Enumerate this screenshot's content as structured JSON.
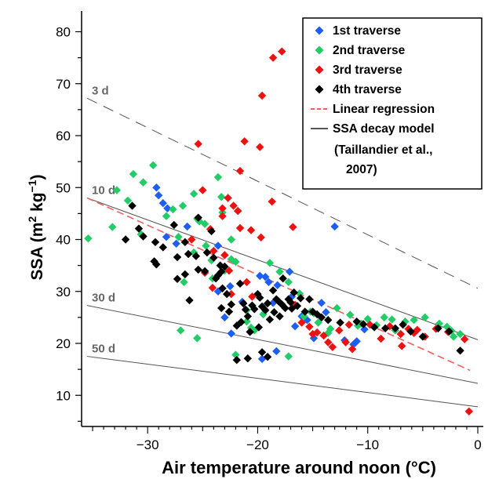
{
  "chart_data": {
    "type": "scatter",
    "xlabel": "Air temperature around noon (°C)",
    "ylabel": {
      "main": "SSA (m",
      "sup1": "2",
      "mid": " kg",
      "sup2": "−1",
      "end": ")"
    },
    "xlim": [
      -36,
      0.5
    ],
    "ylim": [
      4,
      84
    ],
    "x_ticks": [
      -30,
      -20,
      -10,
      0
    ],
    "y_ticks": [
      10,
      20,
      30,
      40,
      50,
      60,
      70,
      80
    ],
    "grid": false,
    "legend_position": "top-right",
    "series": [
      {
        "name": "1st traverse",
        "color": "#1f5ef5",
        "marker": "diamond",
        "points": [
          [
            -29.2,
            50
          ],
          [
            -29.0,
            48.5
          ],
          [
            -28.6,
            47
          ],
          [
            -28.2,
            46
          ],
          [
            -28.3,
            40.5
          ],
          [
            -27.4,
            39.2
          ],
          [
            -26.4,
            42.5
          ],
          [
            -23.6,
            38.8
          ],
          [
            -23.0,
            25
          ],
          [
            -23.6,
            30
          ],
          [
            -22.5,
            31
          ],
          [
            -19.8,
            33
          ],
          [
            -19.3,
            32.8
          ],
          [
            -19.0,
            31.8
          ],
          [
            -18.2,
            31.2
          ],
          [
            -18.6,
            27.8
          ],
          [
            -17.1,
            33.8
          ],
          [
            -16.9,
            29
          ],
          [
            -16.6,
            23.3
          ],
          [
            -14.2,
            27.8
          ],
          [
            -13.8,
            26
          ],
          [
            -13.0,
            42.5
          ],
          [
            -15.5,
            24.5
          ],
          [
            -14.9,
            21
          ],
          [
            -12.1,
            20.6
          ],
          [
            -11.3,
            19.8
          ],
          [
            -11.0,
            20.4
          ],
          [
            -10.3,
            22.7
          ],
          [
            -19.6,
            17
          ],
          [
            -18.3,
            18.5
          ],
          [
            -21.4,
            28
          ],
          [
            -22.4,
            21.9
          ],
          [
            -16.0,
            25.2
          ]
        ]
      },
      {
        "name": "2nd traverse",
        "color": "#22cc66",
        "marker": "diamond",
        "points": [
          [
            -35.4,
            40.2
          ],
          [
            -32.8,
            49.5
          ],
          [
            -31.3,
            52.6
          ],
          [
            -30.4,
            51
          ],
          [
            -29.5,
            54.3
          ],
          [
            -27.7,
            45.8
          ],
          [
            -26.8,
            46.5
          ],
          [
            -27.2,
            40.5
          ],
          [
            -26.7,
            31.8
          ],
          [
            -25.8,
            48.8
          ],
          [
            -25.5,
            44
          ],
          [
            -25.3,
            43.5
          ],
          [
            -24.8,
            43
          ],
          [
            -25.8,
            37.5
          ],
          [
            -24.2,
            36
          ],
          [
            -24.1,
            32.5
          ],
          [
            -23.2,
            45.2
          ],
          [
            -23.3,
            48.2
          ],
          [
            -23.6,
            52
          ],
          [
            -22.4,
            40
          ],
          [
            -22.4,
            36.2
          ],
          [
            -22.0,
            35.7
          ],
          [
            -21.8,
            45.5
          ],
          [
            -23.0,
            34
          ],
          [
            -22.0,
            17.8
          ],
          [
            -21.0,
            24.2
          ],
          [
            -20.6,
            23
          ],
          [
            -20.3,
            22.5
          ],
          [
            -18.9,
            35.5
          ],
          [
            -18.0,
            33.8
          ],
          [
            -17.2,
            31.8
          ],
          [
            -15.2,
            26.1
          ],
          [
            -15.8,
            25.2
          ],
          [
            -14.5,
            24
          ],
          [
            -13.6,
            22
          ],
          [
            -12.8,
            26.8
          ],
          [
            -11.6,
            25.5
          ],
          [
            -10.6,
            23.8
          ],
          [
            -10.0,
            24.7
          ],
          [
            -9.2,
            23.5
          ],
          [
            -8.5,
            25
          ],
          [
            -7.5,
            22.5
          ],
          [
            -6.6,
            24.2
          ],
          [
            -5.8,
            24.5
          ],
          [
            -4.8,
            25
          ],
          [
            -3.5,
            23.8
          ],
          [
            -2.8,
            23.2
          ],
          [
            -2.4,
            22.4
          ],
          [
            -1.6,
            21.8
          ],
          [
            -2.2,
            21.3
          ],
          [
            -30.6,
            41
          ],
          [
            -33.2,
            42.4
          ],
          [
            -31.8,
            47.5
          ],
          [
            -28.3,
            44.5
          ],
          [
            -27.0,
            22.5
          ],
          [
            -25.5,
            21
          ],
          [
            -24.7,
            38.8
          ],
          [
            -21.0,
            26.4
          ],
          [
            -16.2,
            29.6
          ],
          [
            -10.9,
            23.4
          ],
          [
            -7.8,
            24.6
          ],
          [
            -17.2,
            17.5
          ],
          [
            -13.4,
            22.8
          ],
          [
            -19.5,
            25.6
          ],
          [
            -14.9,
            25.8
          ]
        ]
      },
      {
        "name": "3rd traverse",
        "color": "#ee1111",
        "marker": "diamond",
        "points": [
          [
            -18.6,
            75
          ],
          [
            -17.8,
            76.2
          ],
          [
            -19.6,
            67.7
          ],
          [
            -25.4,
            58.4
          ],
          [
            -21.2,
            58.9
          ],
          [
            -19.8,
            57.8
          ],
          [
            -21.6,
            53.2
          ],
          [
            -22.7,
            48
          ],
          [
            -25.0,
            49.5
          ],
          [
            -22.2,
            46.5
          ],
          [
            -21.8,
            45.5
          ],
          [
            -18.7,
            47.3
          ],
          [
            -23.2,
            46
          ],
          [
            -23.2,
            44.5
          ],
          [
            -24.3,
            42
          ],
          [
            -21.6,
            42.2
          ],
          [
            -20.6,
            41.8
          ],
          [
            -19.7,
            40.4
          ],
          [
            -16.8,
            42.4
          ],
          [
            -24.0,
            37.8
          ],
          [
            -23.0,
            37
          ],
          [
            -24.8,
            33.6
          ],
          [
            -22.6,
            34
          ],
          [
            -24.1,
            30.7
          ],
          [
            -22.4,
            29.5
          ],
          [
            -16.0,
            24
          ],
          [
            -15.3,
            23.2
          ],
          [
            -14.6,
            22.1
          ],
          [
            -15.0,
            21.8
          ],
          [
            -14.0,
            21.5
          ],
          [
            -12.6,
            22.5
          ],
          [
            -13.6,
            20.2
          ],
          [
            -13.2,
            19.3
          ],
          [
            -12.0,
            20.2
          ],
          [
            -11.4,
            18.9
          ],
          [
            -9.8,
            23.6
          ],
          [
            -8.0,
            23.3
          ],
          [
            -7.0,
            21.8
          ],
          [
            -6.3,
            22.8
          ],
          [
            -5.8,
            22
          ],
          [
            -5.5,
            22.6
          ],
          [
            -3.8,
            22.8
          ],
          [
            -2.7,
            22.2
          ],
          [
            -1.2,
            20.8
          ],
          [
            -4.8,
            21.3
          ],
          [
            -6.9,
            19.5
          ],
          [
            -8.8,
            20.9
          ],
          [
            -0.8,
            6.9
          ],
          [
            -21.0,
            31.8
          ],
          [
            -16.6,
            27.4
          ],
          [
            -26.0,
            40
          ],
          [
            -20.5,
            29
          ],
          [
            -11.7,
            23.6
          ]
        ]
      },
      {
        "name": "4th traverse",
        "color": "#000000",
        "marker": "diamond",
        "points": [
          [
            -31.4,
            46.5
          ],
          [
            -30.8,
            42.1
          ],
          [
            -30.4,
            40.6
          ],
          [
            -29.3,
            39.5
          ],
          [
            -28.6,
            38.5
          ],
          [
            -32.0,
            40
          ],
          [
            -29.4,
            35.8
          ],
          [
            -29.2,
            35.2
          ],
          [
            -27.6,
            42.8
          ],
          [
            -27.3,
            36.6
          ],
          [
            -26.6,
            39.5
          ],
          [
            -26.3,
            37.2
          ],
          [
            -25.6,
            36.8
          ],
          [
            -27.3,
            32.4
          ],
          [
            -26.6,
            33.3
          ],
          [
            -25.4,
            34.2
          ],
          [
            -24.8,
            33.9
          ],
          [
            -24.6,
            37.5
          ],
          [
            -24.2,
            41.6
          ],
          [
            -24.0,
            36.5
          ],
          [
            -23.4,
            35
          ],
          [
            -23.3,
            33.8
          ],
          [
            -23.6,
            33.1
          ],
          [
            -23.8,
            32.5
          ],
          [
            -23.0,
            34.8
          ],
          [
            -23.2,
            30.6
          ],
          [
            -22.8,
            29.5
          ],
          [
            -22.4,
            27.5
          ],
          [
            -21.6,
            31.5
          ],
          [
            -21.3,
            27.7
          ],
          [
            -21.1,
            26.5
          ],
          [
            -20.9,
            25.2
          ],
          [
            -20.5,
            27.3
          ],
          [
            -20.3,
            26.6
          ],
          [
            -20.0,
            29.5
          ],
          [
            -19.8,
            28.8
          ],
          [
            -19.6,
            27.1
          ],
          [
            -19.3,
            26.4
          ],
          [
            -19.1,
            27.7
          ],
          [
            -18.9,
            24.6
          ],
          [
            -18.6,
            30.2
          ],
          [
            -18.3,
            28.5
          ],
          [
            -18.1,
            28.1
          ],
          [
            -17.8,
            27.5
          ],
          [
            -17.5,
            26.8
          ],
          [
            -17.2,
            28.5
          ],
          [
            -17.0,
            27.9
          ],
          [
            -16.7,
            29.8
          ],
          [
            -16.4,
            27.2
          ],
          [
            -16.1,
            28.7
          ],
          [
            -15.7,
            26.1
          ],
          [
            -15.3,
            28.5
          ],
          [
            -15.0,
            26.1
          ],
          [
            -14.6,
            25.6
          ],
          [
            -14.2,
            25
          ],
          [
            -13.6,
            24.5
          ],
          [
            -12.5,
            24
          ],
          [
            -11.0,
            24.2
          ],
          [
            -10.4,
            23.7
          ],
          [
            -9.4,
            23.1
          ],
          [
            -8.4,
            22.9
          ],
          [
            -7.5,
            22.9
          ],
          [
            -6.8,
            23.6
          ],
          [
            -6.1,
            22.3
          ],
          [
            -5.0,
            21.3
          ],
          [
            -3.6,
            22.9
          ],
          [
            -2.6,
            22.3
          ],
          [
            -1.6,
            18.6
          ],
          [
            -21.9,
            16.8
          ],
          [
            -21.5,
            24.1
          ],
          [
            -20.9,
            17.1
          ],
          [
            -19.6,
            18.3
          ],
          [
            -19.1,
            17.4
          ],
          [
            -17.7,
            32.5
          ],
          [
            -22.6,
            26.1
          ],
          [
            -25.4,
            44.2
          ],
          [
            -26.2,
            28.3
          ],
          [
            -23.3,
            26.8
          ],
          [
            -20.7,
            22.2
          ],
          [
            -19.9,
            23.1
          ],
          [
            -16.9,
            26.7
          ],
          [
            -18.0,
            25.2
          ],
          [
            -21.9,
            23.4
          ],
          [
            -18.5,
            26
          ]
        ]
      }
    ],
    "regression": {
      "name": "Linear regression",
      "color": "#f06060",
      "x": [
        -35.5,
        -0.7
      ],
      "y": [
        48,
        14.8
      ]
    },
    "decay_model": {
      "name": "SSA decay model",
      "citation_line1": "(Taillandier et al.,",
      "citation_line2": "2007)",
      "color": "#555555",
      "lines": [
        {
          "label": "3 d",
          "x": [
            -35.5,
            0
          ],
          "y": [
            67.2,
            30.6
          ],
          "dashed": true
        },
        {
          "label": "10 d",
          "x": [
            -35.5,
            0
          ],
          "y": [
            48,
            20.7
          ],
          "dashed": false
        },
        {
          "label": "30 d",
          "x": [
            -35.5,
            0
          ],
          "y": [
            27.3,
            12.3
          ],
          "dashed": false
        },
        {
          "label": "50 d",
          "x": [
            -35.5,
            0
          ],
          "y": [
            17.5,
            7.8
          ],
          "dashed": false
        }
      ]
    }
  }
}
